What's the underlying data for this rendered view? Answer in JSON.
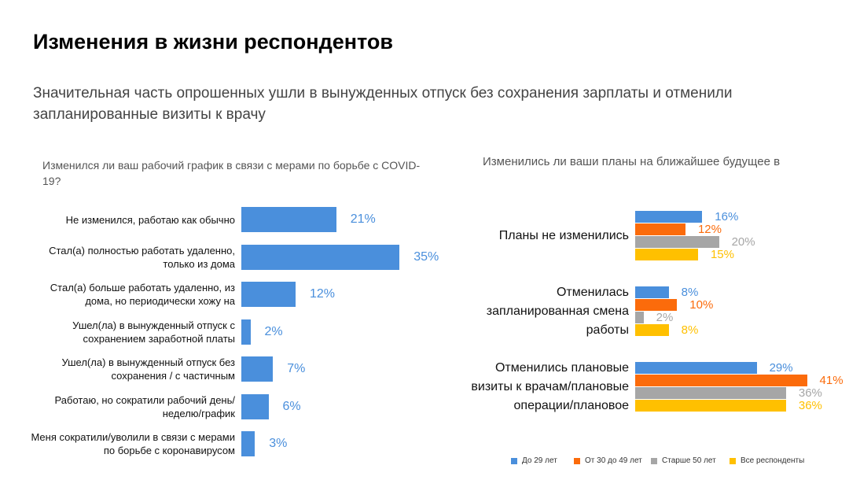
{
  "title": "Изменения в жизни респондентов",
  "subtitle": "Значительная часть опрошенных ушли в вынужденных отпуск без сохранения зарплаты и отменили запланированные визиты к врачу",
  "chart_data": [
    {
      "type": "hbar",
      "title": "Изменился ли ваш рабочий график в связи с мерами по борьбе с COVID-19?",
      "categories": [
        "Не изменился, работаю как обычно",
        "Стал(а) полностью работать удаленно, только из дома",
        "Стал(а) больше работать удаленно, из дома, но периодически хожу на",
        "Ушел(ла) в вынужденный отпуск с сохранением заработной платы",
        "Ушел(ла) в вынужденный отпуск без сохранения / с частичным",
        "Работаю, но сократили рабочий день/неделю/график",
        "Меня сократили/уволили в связи с мерами по борьбе с коронавирусом"
      ],
      "values": [
        21,
        35,
        12,
        2,
        7,
        6,
        3
      ],
      "value_labels": [
        "21%",
        "35%",
        "12%",
        "2%",
        "7%",
        "6%",
        "3%"
      ],
      "color": "#4a8fdc"
    },
    {
      "type": "grouped-hbar",
      "title": "Изменились ли ваши планы на ближайшее будущее в",
      "categories": [
        "Планы не изменились",
        "Отменилась запланированная смена работы",
        "Отменились плановые визиты к врачам/плановые операции/плановое"
      ],
      "series": [
        {
          "name": "До 29 лет",
          "color": "#4a8fdc",
          "values": [
            16,
            8,
            29
          ],
          "value_labels": [
            "16%",
            "8%",
            "29%"
          ]
        },
        {
          "name": "От 30 до 49 лет",
          "color": "#fb6b0b",
          "values": [
            12,
            10,
            41
          ],
          "value_labels": [
            "12%",
            "10%",
            "41%"
          ]
        },
        {
          "name": "Старше 50 лет",
          "color": "#a6a6a6",
          "values": [
            20,
            2,
            36
          ],
          "value_labels": [
            "20%",
            "2%",
            "36%"
          ]
        },
        {
          "name": "Все респонденты",
          "color": "#ffc000",
          "values": [
            15,
            8,
            36
          ],
          "value_labels": [
            "15%",
            "8%",
            "36%"
          ]
        }
      ]
    }
  ]
}
